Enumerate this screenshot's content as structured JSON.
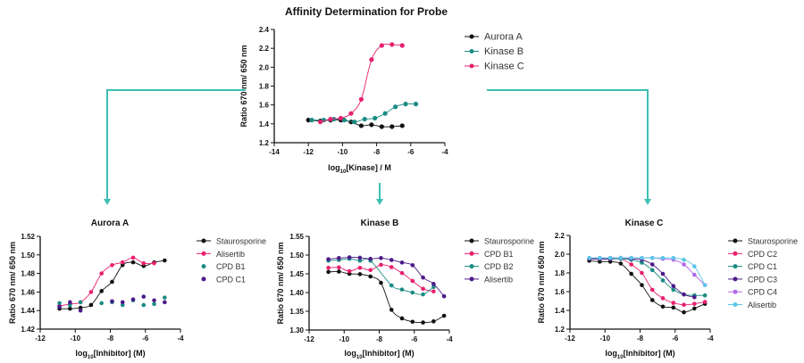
{
  "connector_color": "#3cbfb4",
  "chart_data": [
    {
      "id": "probe",
      "type": "line",
      "title": "Affinity Determination for Probe",
      "xlabel_pre": "log",
      "xlabel_sub": "10",
      "xlabel_post": "[Kinase] / M",
      "ylabel": "Ratio 670 nm/ 650 nm",
      "xlim": [
        -14,
        -4
      ],
      "ylim": [
        1.2,
        2.4
      ],
      "xticks": [
        -14,
        -12,
        -10,
        -8,
        -6,
        -4
      ],
      "xtick_labels": [
        "-14",
        "-12",
        "-10",
        "-8",
        "-6",
        "-4"
      ],
      "yticks": [
        1.2,
        1.4,
        1.6,
        1.8,
        2.0,
        2.2,
        2.4
      ],
      "ytick_labels": [
        "1.2",
        "1.4",
        "1.6",
        "1.8",
        "2.0",
        "2.2",
        "2.4"
      ],
      "legend": "right",
      "series": [
        {
          "name": "Aurora A",
          "color": "#111111",
          "fit": true,
          "x": [
            -12,
            -11.3,
            -10.7,
            -10.1,
            -9.5,
            -8.9,
            -8.3,
            -7.7,
            -7.1,
            -6.5
          ],
          "y": [
            1.44,
            1.43,
            1.44,
            1.44,
            1.42,
            1.38,
            1.39,
            1.37,
            1.37,
            1.38
          ]
        },
        {
          "name": "Kinase B",
          "color": "#1a8c84",
          "fit": true,
          "x": [
            -11.8,
            -11.1,
            -10.5,
            -9.9,
            -9.3,
            -8.7,
            -8.1,
            -7.5,
            -6.9,
            -6.3,
            -5.7
          ],
          "y": [
            1.44,
            1.44,
            1.45,
            1.44,
            1.42,
            1.45,
            1.46,
            1.51,
            1.58,
            1.61,
            1.61
          ]
        },
        {
          "name": "Kinase C",
          "color": "#e8206e",
          "fit": true,
          "x": [
            -11.3,
            -10.7,
            -10.1,
            -9.5,
            -8.9,
            -8.3,
            -7.7,
            -7.1,
            -6.5
          ],
          "y": [
            1.42,
            1.45,
            1.46,
            1.51,
            1.66,
            2.08,
            2.23,
            2.24,
            2.23
          ]
        }
      ]
    },
    {
      "id": "aurora",
      "type": "line",
      "title": "Aurora A",
      "xlabel_pre": "log",
      "xlabel_sub": "10",
      "xlabel_post": "[Inhibitor] (M)",
      "ylabel": "Ratio 670 nm/ 650 nm",
      "xlim": [
        -12,
        -4
      ],
      "ylim": [
        1.42,
        1.52
      ],
      "xticks": [
        -12,
        -10,
        -8,
        -6,
        -4
      ],
      "xtick_labels": [
        "-12",
        "-10",
        "-8",
        "-6",
        "-4"
      ],
      "yticks": [
        1.42,
        1.44,
        1.46,
        1.48,
        1.5,
        1.52
      ],
      "ytick_labels": [
        "1.42",
        "1.44",
        "1.46",
        "1.48",
        "1.50",
        "1.52"
      ],
      "legend": "right",
      "series": [
        {
          "name": "Staurosporine",
          "color": "#111111",
          "fit": true,
          "x": [
            -10.9,
            -10.3,
            -9.7,
            -9.1,
            -8.5,
            -7.9,
            -7.3,
            -6.7,
            -6.1,
            -5.5,
            -4.9
          ],
          "y": [
            1.442,
            1.442,
            1.443,
            1.446,
            1.461,
            1.471,
            1.489,
            1.492,
            1.488,
            1.492,
            1.494
          ]
        },
        {
          "name": "Alisertib",
          "color": "#e8206e",
          "fit": true,
          "x": [
            -10.9,
            -10.3,
            -9.7,
            -9.1,
            -8.5,
            -7.9,
            -7.3,
            -6.7,
            -6.1,
            -5.5
          ],
          "y": [
            1.445,
            1.447,
            1.449,
            1.46,
            1.48,
            1.489,
            1.492,
            1.497,
            1.491,
            1.491
          ]
        },
        {
          "name": "CPD B1",
          "color": "#1a8c84",
          "fit": false,
          "x": [
            -10.9,
            -10.3,
            -9.7,
            -8.5,
            -7.9,
            -7.3,
            -6.7,
            -6.1,
            -5.5,
            -4.9
          ],
          "y": [
            1.448,
            1.446,
            1.449,
            1.448,
            1.449,
            1.446,
            1.451,
            1.446,
            1.447,
            1.454
          ]
        },
        {
          "name": "CPD C1",
          "color": "#4b1a8a",
          "fit": false,
          "x": [
            -10.9,
            -10.3,
            -9.7,
            -7.9,
            -7.3,
            -6.7,
            -6.1,
            -5.5,
            -4.9
          ],
          "y": [
            1.444,
            1.449,
            1.44,
            1.45,
            1.449,
            1.452,
            1.455,
            1.451,
            1.449
          ]
        }
      ]
    },
    {
      "id": "kinaseb",
      "type": "line",
      "title": "Kinase B",
      "xlabel_pre": "log",
      "xlabel_sub": "10",
      "xlabel_post": "[Inhibitor] (M)",
      "ylabel": "Ratio 670 nm/ 650 nm",
      "xlim": [
        -12,
        -4
      ],
      "ylim": [
        1.3,
        1.55
      ],
      "xticks": [
        -12,
        -10,
        -8,
        -6,
        -4
      ],
      "xtick_labels": [
        "-12",
        "-10",
        "-8",
        "-6",
        "-4"
      ],
      "yticks": [
        1.3,
        1.35,
        1.4,
        1.45,
        1.5,
        1.55
      ],
      "ytick_labels": [
        "1.30",
        "1.35",
        "1.40",
        "1.45",
        "1.50",
        "1.55"
      ],
      "legend": "right",
      "series": [
        {
          "name": "Staurosporine",
          "color": "#111111",
          "fit": true,
          "x": [
            -10.9,
            -10.3,
            -9.7,
            -9.1,
            -8.5,
            -7.9,
            -7.3,
            -6.7,
            -6.1,
            -5.5,
            -4.9,
            -4.3
          ],
          "y": [
            1.455,
            1.456,
            1.45,
            1.449,
            1.443,
            1.426,
            1.354,
            1.331,
            1.322,
            1.32,
            1.323,
            1.338
          ]
        },
        {
          "name": "CPD B1",
          "color": "#e8206e",
          "fit": true,
          "x": [
            -10.9,
            -10.3,
            -9.7,
            -9.1,
            -8.5,
            -7.9,
            -7.3,
            -6.7,
            -6.1,
            -5.5,
            -4.9
          ],
          "y": [
            1.466,
            1.467,
            1.457,
            1.466,
            1.46,
            1.474,
            1.468,
            1.452,
            1.431,
            1.41,
            1.403
          ]
        },
        {
          "name": "CPD B2",
          "color": "#1a8c84",
          "fit": true,
          "x": [
            -10.9,
            -10.3,
            -9.7,
            -9.1,
            -8.5,
            -7.3,
            -6.7,
            -6.1,
            -5.5,
            -4.9
          ],
          "y": [
            1.485,
            1.487,
            1.49,
            1.485,
            1.485,
            1.419,
            1.408,
            1.4,
            1.395,
            1.415
          ]
        },
        {
          "name": "Alisertib",
          "color": "#4b1a8a",
          "fit": true,
          "x": [
            -10.9,
            -10.3,
            -9.7,
            -9.1,
            -8.5,
            -7.9,
            -7.3,
            -6.7,
            -6.1,
            -5.5,
            -4.9,
            -4.3
          ],
          "y": [
            1.489,
            1.492,
            1.494,
            1.493,
            1.49,
            1.492,
            1.487,
            1.48,
            1.473,
            1.44,
            1.423,
            1.39
          ]
        }
      ]
    },
    {
      "id": "kinasec",
      "type": "line",
      "title": "Kinase C",
      "xlabel_pre": "log",
      "xlabel_sub": "10",
      "xlabel_post": "[Inhibitor] (M)",
      "ylabel": "Ratio 670 nm/ 650 nm",
      "xlim": [
        -12,
        -4
      ],
      "ylim": [
        1.2,
        2.2
      ],
      "xticks": [
        -12,
        -10,
        -8,
        -6,
        -4
      ],
      "xtick_labels": [
        "-12",
        "-10",
        "-8",
        "-6",
        "-4"
      ],
      "yticks": [
        1.2,
        1.4,
        1.6,
        1.8,
        2.0,
        2.2
      ],
      "ytick_labels": [
        "1.2",
        "1.4",
        "1.6",
        "1.8",
        "2.0",
        "2.2"
      ],
      "legend": "right",
      "series": [
        {
          "name": "Staurosporine",
          "color": "#111111",
          "fit": true,
          "x": [
            -10.9,
            -10.3,
            -9.7,
            -9.1,
            -8.5,
            -7.9,
            -7.3,
            -6.7,
            -6.1,
            -5.5,
            -4.9,
            -4.3
          ],
          "y": [
            1.93,
            1.92,
            1.92,
            1.9,
            1.79,
            1.67,
            1.51,
            1.44,
            1.43,
            1.38,
            1.42,
            1.47
          ]
        },
        {
          "name": "CPD C2",
          "color": "#e8206e",
          "fit": true,
          "x": [
            -10.9,
            -10.3,
            -9.7,
            -9.1,
            -8.5,
            -7.9,
            -7.3,
            -6.7,
            -6.1,
            -5.5,
            -4.9,
            -4.3
          ],
          "y": [
            1.95,
            1.95,
            1.95,
            1.95,
            1.89,
            1.8,
            1.62,
            1.53,
            1.48,
            1.46,
            1.47,
            1.49
          ]
        },
        {
          "name": "CPD C1",
          "color": "#1a8c84",
          "fit": true,
          "x": [
            -10.9,
            -10.3,
            -9.7,
            -9.1,
            -8.5,
            -7.9,
            -7.3,
            -6.7,
            -6.1,
            -5.5,
            -4.9,
            -4.3
          ],
          "y": [
            1.95,
            1.95,
            1.95,
            1.95,
            1.94,
            1.91,
            1.83,
            1.72,
            1.62,
            1.57,
            1.56,
            1.56
          ]
        },
        {
          "name": "CPD C3",
          "color": "#4b1a8a",
          "fit": true,
          "x": [
            -10.9,
            -10.3,
            -9.7,
            -9.1,
            -8.5,
            -7.9,
            -7.3,
            -6.7,
            -6.1,
            -5.5,
            -4.9
          ],
          "y": [
            1.95,
            1.95,
            1.95,
            1.96,
            1.95,
            1.94,
            1.89,
            1.79,
            1.66,
            1.57,
            1.54
          ]
        },
        {
          "name": "CPD C4",
          "color": "#b069e8",
          "fit": true,
          "x": [
            -10.9,
            -10.3,
            -9.7,
            -9.1,
            -8.5,
            -7.9,
            -7.3,
            -6.7,
            -6.1,
            -5.5,
            -4.9,
            -4.3
          ],
          "y": [
            1.96,
            1.96,
            1.96,
            1.96,
            1.96,
            1.96,
            1.96,
            1.95,
            1.94,
            1.89,
            1.78,
            1.67
          ]
        },
        {
          "name": "Alisertib",
          "color": "#5cc6e8",
          "fit": true,
          "x": [
            -10.9,
            -10.3,
            -9.7,
            -9.1,
            -8.5,
            -7.9,
            -7.3,
            -6.7,
            -6.1,
            -5.5,
            -4.9,
            -4.3
          ],
          "y": [
            1.96,
            1.96,
            1.96,
            1.96,
            1.96,
            1.96,
            1.96,
            1.96,
            1.96,
            1.94,
            1.87,
            1.67
          ]
        }
      ]
    }
  ]
}
